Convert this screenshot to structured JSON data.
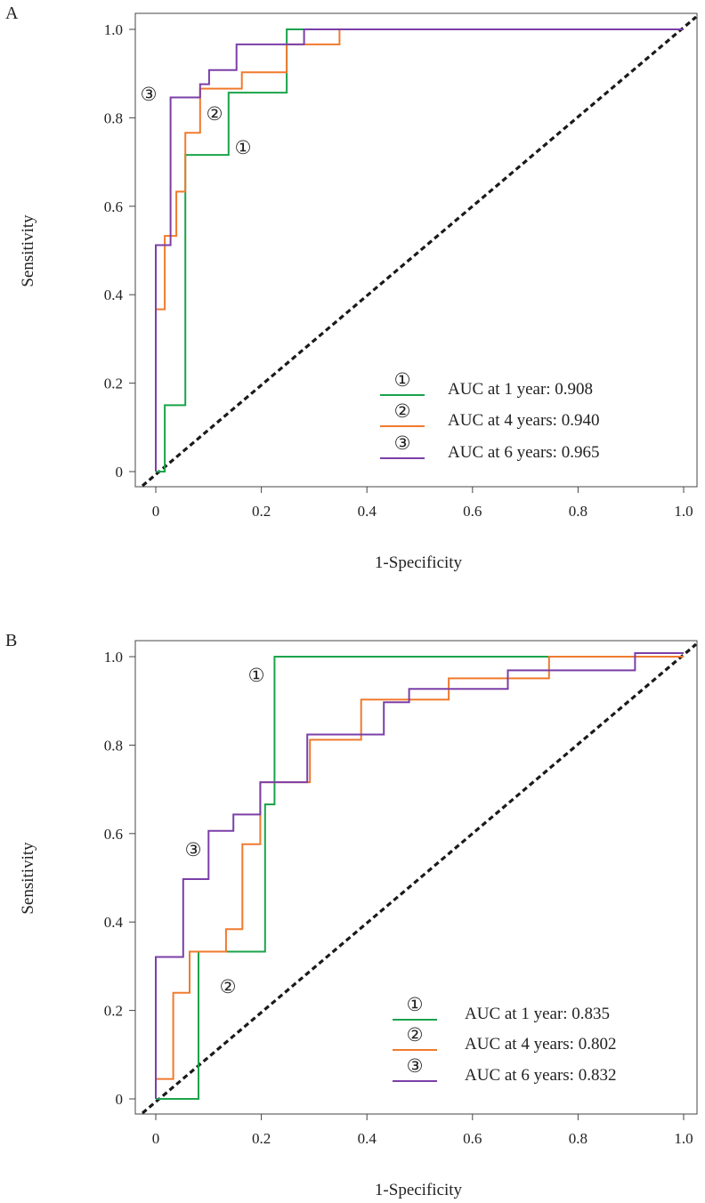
{
  "colors": {
    "series1": "#1aa34a",
    "series2": "#f07a2e",
    "series3": "#7b3fa8",
    "diagonal": "#1a1a1a",
    "axis": "#444444"
  },
  "chart_data": [
    {
      "type": "line",
      "panel_label": "A",
      "xlabel": "1-Specificity",
      "ylabel": "Sensitivity",
      "xlim": [
        0,
        1
      ],
      "ylim": [
        0,
        1
      ],
      "x_ticks": [
        "0",
        "0.2",
        "0.4",
        "0.6",
        "0.8",
        "1.0"
      ],
      "y_ticks": [
        "0",
        "0.2",
        "0.4",
        "0.6",
        "0.8",
        "1.0"
      ],
      "reference_line": "dashed diagonal",
      "legend_position": "bottom-right",
      "series": [
        {
          "name": "AUC at 1 year: 0.908",
          "marker": "①",
          "color_key": "series1",
          "x": [
            0,
            0.017,
            0.017,
            0.056,
            0.056,
            0.138,
            0.138,
            0.248,
            0.248,
            0.281,
            1
          ],
          "y": [
            0,
            0,
            0.15,
            0.15,
            0.716,
            0.716,
            0.857,
            0.857,
            1,
            1,
            1
          ]
        },
        {
          "name": "AUC at 4 years: 0.940",
          "marker": "②",
          "color_key": "series2",
          "x": [
            0,
            0,
            0.017,
            0.017,
            0.039,
            0.039,
            0.056,
            0.056,
            0.067,
            0.067,
            0.084,
            0.084,
            0.163,
            0.163,
            0.248,
            0.248,
            0.348,
            0.348,
            1
          ],
          "y": [
            0,
            0.367,
            0.367,
            0.533,
            0.533,
            0.633,
            0.633,
            0.766,
            0.766,
            0.766,
            0.766,
            0.866,
            0.866,
            0.903,
            0.903,
            0.966,
            0.966,
            1,
            1
          ]
        },
        {
          "name": "AUC at 6 years: 0.965",
          "marker": "③",
          "color_key": "series3",
          "x": [
            0,
            0,
            0.028,
            0.028,
            0.084,
            0.084,
            0.101,
            0.101,
            0.153,
            0.153,
            0.281,
            0.281,
            1
          ],
          "y": [
            0,
            0.512,
            0.512,
            0.846,
            0.846,
            0.876,
            0.876,
            0.908,
            0.908,
            0.966,
            0.966,
            1,
            1
          ]
        }
      ]
    },
    {
      "type": "line",
      "panel_label": "B",
      "xlabel": "1-Specificity",
      "ylabel": "Sensitivity",
      "xlim": [
        0,
        1
      ],
      "ylim": [
        0,
        1
      ],
      "x_ticks": [
        "0",
        "0.2",
        "0.4",
        "0.6",
        "0.8",
        "1.0"
      ],
      "y_ticks": [
        "0",
        "0.2",
        "0.4",
        "0.6",
        "0.8",
        "1.0"
      ],
      "reference_line": "dashed diagonal",
      "legend_position": "bottom-right",
      "series": [
        {
          "name": "AUC at 1 year: 0.835",
          "marker": "①",
          "color_key": "series1",
          "x": [
            0,
            0.081,
            0.081,
            0.207,
            0.207,
            0.225,
            0.225,
            0.745,
            0.745,
            1
          ],
          "y": [
            0,
            0,
            0.333,
            0.333,
            0.666,
            0.666,
            1,
            1,
            1,
            1
          ]
        },
        {
          "name": "AUC at 4 years: 0.802",
          "marker": "②",
          "color_key": "series2",
          "x": [
            0,
            0,
            0.033,
            0.033,
            0.064,
            0.064,
            0.073,
            0.073,
            0.133,
            0.133,
            0.164,
            0.164,
            0.198,
            0.198,
            0.207,
            0.207,
            0.292,
            0.292,
            0.389,
            0.389,
            0.475,
            0.475,
            0.555,
            0.555,
            0.745,
            0.745,
            0.908,
            0.908,
            1
          ],
          "y": [
            0,
            0.045,
            0.045,
            0.24,
            0.24,
            0.333,
            0.333,
            0.333,
            0.333,
            0.384,
            0.384,
            0.576,
            0.576,
            0.716,
            0.716,
            0.716,
            0.716,
            0.812,
            0.812,
            0.903,
            0.903,
            0.903,
            0.903,
            0.951,
            0.951,
            1,
            1,
            1,
            1
          ]
        },
        {
          "name": "AUC at 6 years: 0.832",
          "marker": "③",
          "color_key": "series3",
          "x": [
            0,
            0,
            0.052,
            0.052,
            0.1,
            0.1,
            0.147,
            0.147,
            0.198,
            0.198,
            0.287,
            0.287,
            0.432,
            0.432,
            0.48,
            0.48,
            0.667,
            0.667,
            0.908,
            0.908,
            1
          ],
          "y": [
            0,
            0.321,
            0.321,
            0.497,
            0.497,
            0.606,
            0.606,
            0.643,
            0.643,
            0.716,
            0.716,
            0.824,
            0.824,
            0.897,
            0.897,
            0.927,
            0.927,
            0.969,
            0.969,
            1.008,
            1.008
          ]
        }
      ]
    }
  ]
}
